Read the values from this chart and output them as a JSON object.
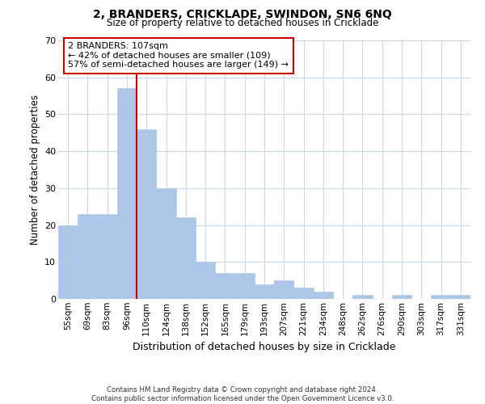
{
  "title": "2, BRANDERS, CRICKLADE, SWINDON, SN6 6NQ",
  "subtitle": "Size of property relative to detached houses in Cricklade",
  "xlabel": "Distribution of detached houses by size in Cricklade",
  "ylabel": "Number of detached properties",
  "bar_labels": [
    "55sqm",
    "69sqm",
    "83sqm",
    "96sqm",
    "110sqm",
    "124sqm",
    "138sqm",
    "152sqm",
    "165sqm",
    "179sqm",
    "193sqm",
    "207sqm",
    "221sqm",
    "234sqm",
    "248sqm",
    "262sqm",
    "276sqm",
    "290sqm",
    "303sqm",
    "317sqm",
    "331sqm"
  ],
  "bar_values": [
    20,
    23,
    23,
    57,
    46,
    30,
    22,
    10,
    7,
    7,
    4,
    5,
    3,
    2,
    0,
    1,
    0,
    1,
    0,
    1,
    1
  ],
  "bar_color": "#aec6e8",
  "bar_edge_color": "#aec6e8",
  "vline_color": "#cc0000",
  "ylim": [
    0,
    70
  ],
  "yticks": [
    0,
    10,
    20,
    30,
    40,
    50,
    60,
    70
  ],
  "annotation_text": "2 BRANDERS: 107sqm\n← 42% of detached houses are smaller (109)\n57% of semi-detached houses are larger (149) →",
  "annotation_box_color": "#ffffff",
  "annotation_box_edge": "#cc0000",
  "footer_line1": "Contains HM Land Registry data © Crown copyright and database right 2024.",
  "footer_line2": "Contains public sector information licensed under the Open Government Licence v3.0.",
  "background_color": "#ffffff",
  "grid_color": "#c8d8e8"
}
